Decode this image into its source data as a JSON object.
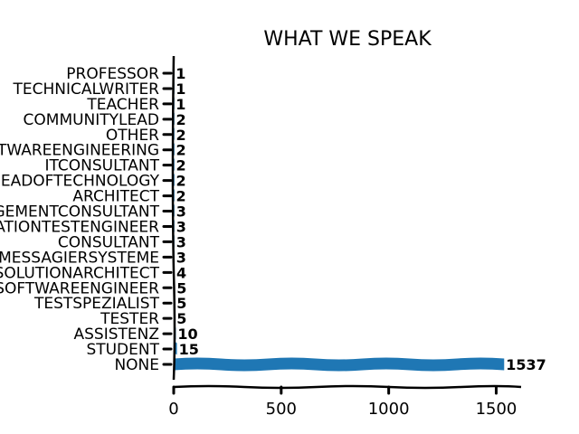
{
  "chart_data": {
    "type": "bar",
    "orientation": "horizontal",
    "title": "WHAT WE SPEAK",
    "xlabel": "",
    "ylabel": "",
    "xlim": [
      0,
      1620
    ],
    "xticks": [
      0,
      500,
      1000,
      1500
    ],
    "categories": [
      "PROFESSOR",
      "TECHNICALWRITER",
      "TEACHER",
      "COMMUNITYLEAD",
      "OTHER",
      "SOFTWAREENGINEERING",
      "ITCONSULTANT",
      "HEADOFTECHNOLOGY",
      "ARCHITECT",
      "MANAGEMENTCONSULTANT",
      "AUTOMATIONTESTENGINEER",
      "CONSULTANT",
      "BOTSMESSAGIERSYSTEME",
      "SOLUTIONARCHITECT",
      "SOFTWAREENGINEER",
      "TESTSPEZIALIST",
      "TESTER",
      "ASSISTENZ",
      "STUDENT",
      "NONE"
    ],
    "values": [
      1,
      1,
      1,
      2,
      2,
      2,
      2,
      2,
      2,
      3,
      3,
      3,
      3,
      4,
      5,
      5,
      5,
      10,
      15,
      1537
    ],
    "bar_color": "#1f77b4",
    "grid": false,
    "legend": "none"
  }
}
